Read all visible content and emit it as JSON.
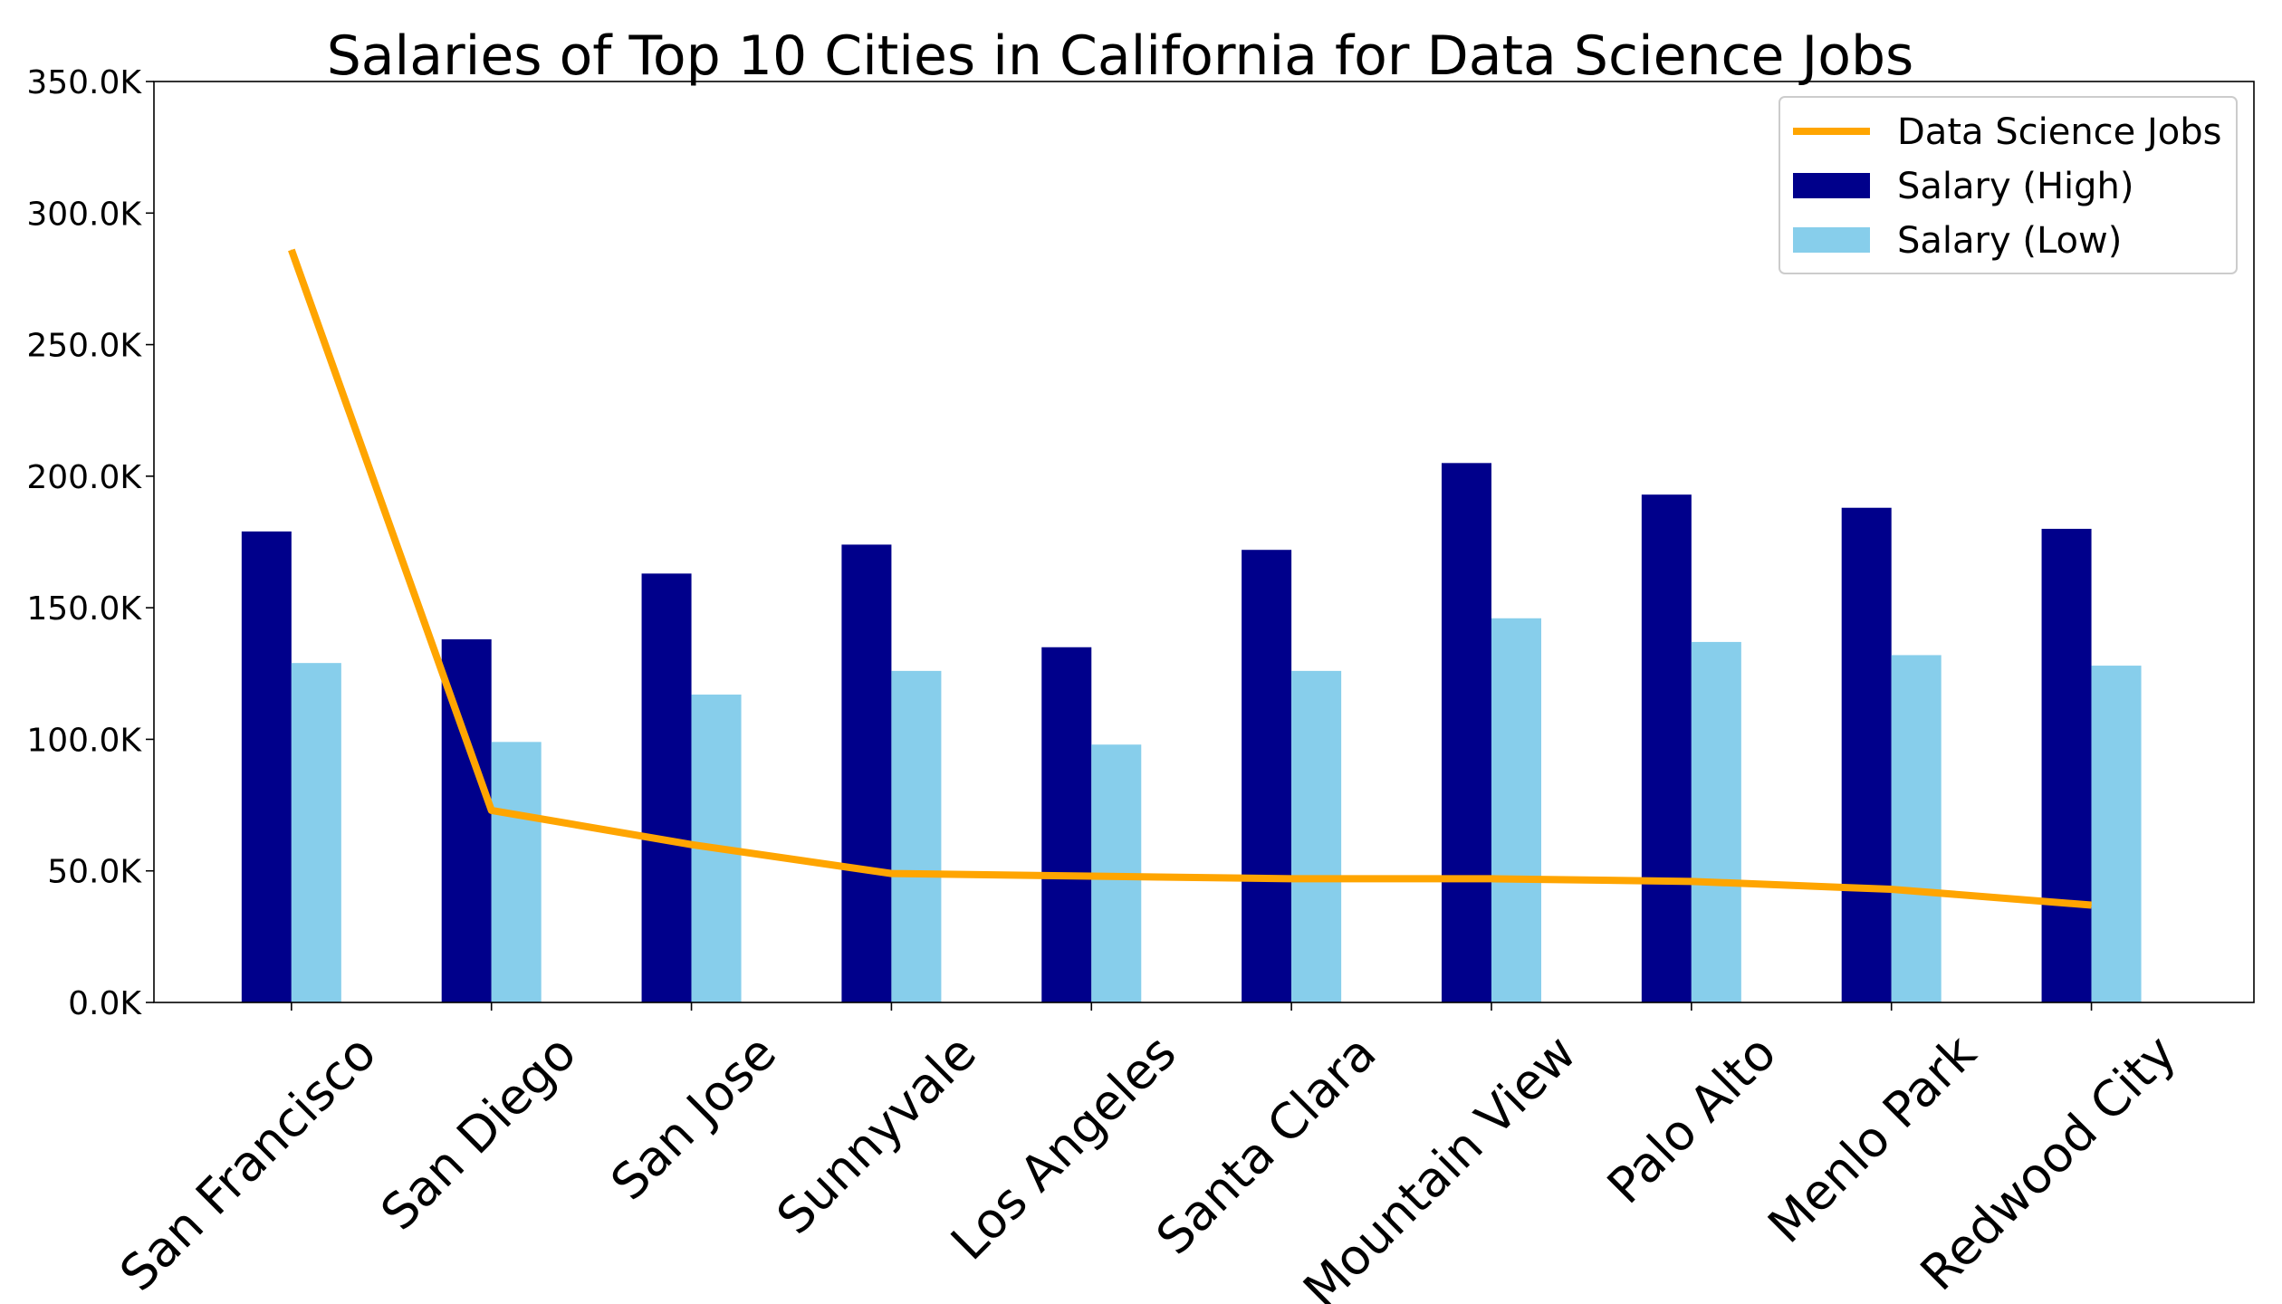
{
  "chart_data": {
    "type": "bar",
    "title": "Salaries of Top 10 Cities in California for Data Science Jobs",
    "xlabel": "",
    "ylabel": "",
    "categories": [
      "San Francisco",
      "San Diego",
      "San Jose",
      "Sunnyvale",
      "Los Angeles",
      "Santa Clara",
      "Mountain View",
      "Palo Alto",
      "Menlo Park",
      "Redwood City"
    ],
    "ylim": [
      0,
      350000
    ],
    "yticks": [
      0,
      50000,
      100000,
      150000,
      200000,
      250000,
      300000,
      350000
    ],
    "ytick_labels": [
      "0.0K",
      "50.0K",
      "100.0K",
      "150.0K",
      "200.0K",
      "250.0K",
      "300.0K",
      "350.0K"
    ],
    "grid": false,
    "legend_position": "top-right",
    "series": [
      {
        "name": "Salary (High)",
        "kind": "bar",
        "color": "#00008B",
        "values": [
          179000,
          138000,
          163000,
          174000,
          135000,
          172000,
          205000,
          193000,
          188000,
          180000
        ]
      },
      {
        "name": "Salary (Low)",
        "kind": "bar",
        "color": "#87CEEB",
        "values": [
          129000,
          99000,
          117000,
          126000,
          98000,
          126000,
          146000,
          137000,
          132000,
          128000
        ]
      },
      {
        "name": "Data Science Jobs",
        "kind": "line",
        "color": "#FFA500",
        "values": [
          286000,
          73000,
          60000,
          49000,
          48000,
          47000,
          47000,
          46000,
          43000,
          37000
        ]
      }
    ],
    "legend_order": [
      "Data Science Jobs",
      "Salary (High)",
      "Salary (Low)"
    ]
  }
}
